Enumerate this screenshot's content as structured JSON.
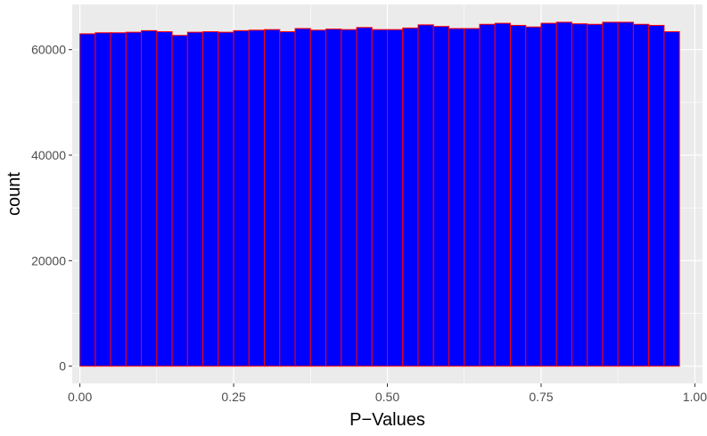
{
  "chart_data": {
    "type": "histogram",
    "xlabel": "P−Values",
    "ylabel": "count",
    "xlim": [
      -0.0125,
      1.0125
    ],
    "ylim": [
      -3264,
      68564
    ],
    "x_ticks": [
      0.0,
      0.25,
      0.5,
      0.75,
      1.0
    ],
    "x_tick_labels": [
      "0.00",
      "0.25",
      "0.50",
      "0.75",
      "1.00"
    ],
    "y_ticks": [
      0,
      20000,
      40000,
      60000
    ],
    "y_tick_labels": [
      "0",
      "20000",
      "40000",
      "60000"
    ],
    "grid": true,
    "bin_width": 0.025,
    "bins_start": 0.0,
    "counts": [
      63000,
      63200,
      63200,
      63300,
      63600,
      63400,
      62700,
      63300,
      63400,
      63300,
      63600,
      63700,
      63800,
      63400,
      64000,
      63700,
      63900,
      63800,
      64200,
      63800,
      63800,
      64100,
      64700,
      64400,
      64000,
      64000,
      64800,
      65000,
      64600,
      64300,
      65000,
      65200,
      64900,
      64800,
      65200,
      65200,
      64800,
      64600,
      63400
    ],
    "bar_fill": "#0000ff",
    "bar_outline": "#ff0000",
    "panel_background": "#ebebeb",
    "grid_color": "#ffffff"
  }
}
